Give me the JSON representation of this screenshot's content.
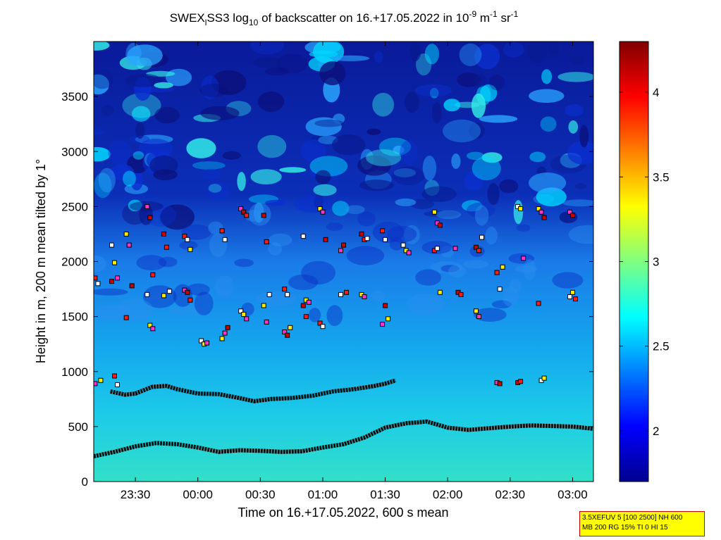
{
  "chart_data": {
    "type": "heatmap",
    "title_prefix": "SWEX",
    "title_sub1": "l",
    "title_mid": "SS3 log",
    "title_sub2": "10",
    "title_rest": " of backscatter on 16.+17.05.2022 in 10",
    "title_sup1": "-9",
    "title_unit1": " m",
    "title_sup2": "-1",
    "title_unit2": " sr",
    "title_sup3": "-1",
    "xlabel": "Time on 16.+17.05.2022, 600 s mean",
    "ylabel": "Height in m, 200 m mean tilted by 1°",
    "x_ticks": [
      "23:30",
      "00:00",
      "00:30",
      "01:00",
      "01:30",
      "02:00",
      "02:30",
      "03:00"
    ],
    "y_ticks": [
      "0",
      "500",
      "1000",
      "1500",
      "2000",
      "2500",
      "3000",
      "3500"
    ],
    "colorbar_ticks": [
      "2",
      "2.5",
      "3",
      "3.5",
      "4"
    ],
    "xlim": [
      "23:10",
      "03:10"
    ],
    "ylim": [
      0,
      4000
    ],
    "clim": [
      1.7,
      4.3
    ],
    "colormap": "jet",
    "layer_lines": [
      {
        "name": "",
        "points": [
          [
            "23:10",
            230
          ],
          [
            "23:20",
            270
          ],
          [
            "23:30",
            320
          ],
          [
            "23:40",
            350
          ],
          [
            "23:50",
            340
          ],
          [
            "00:00",
            310
          ],
          [
            "00:10",
            270
          ],
          [
            "00:20",
            285
          ],
          [
            "00:30",
            280
          ],
          [
            "00:40",
            270
          ],
          [
            "00:50",
            275
          ],
          [
            "01:00",
            310
          ],
          [
            "01:10",
            340
          ],
          [
            "01:20",
            400
          ],
          [
            "01:30",
            490
          ],
          [
            "01:40",
            530
          ],
          [
            "01:50",
            545
          ],
          [
            "02:00",
            490
          ],
          [
            "02:10",
            470
          ],
          [
            "02:20",
            485
          ],
          [
            "02:30",
            500
          ],
          [
            "02:40",
            510
          ],
          [
            "02:50",
            505
          ],
          [
            "03:00",
            500
          ],
          [
            "03:10",
            480
          ]
        ]
      },
      {
        "name": "",
        "points": [
          [
            "23:18",
            820
          ],
          [
            "23:25",
            790
          ],
          [
            "23:30",
            800
          ],
          [
            "23:38",
            860
          ],
          [
            "23:45",
            870
          ],
          [
            "23:50",
            840
          ],
          [
            "00:00",
            800
          ],
          [
            "00:10",
            795
          ],
          [
            "00:20",
            760
          ],
          [
            "00:27",
            730
          ],
          [
            "00:35",
            750
          ],
          [
            "00:45",
            760
          ],
          [
            "00:55",
            780
          ],
          [
            "01:05",
            820
          ],
          [
            "01:15",
            840
          ],
          [
            "01:25",
            870
          ],
          [
            "01:30",
            890
          ],
          [
            "01:35",
            920
          ]
        ]
      }
    ],
    "marker_clusters": [
      {
        "x": "23:12",
        "heights": [
          1850,
          1800,
          920,
          890
        ]
      },
      {
        "x": "23:20",
        "heights": [
          2150,
          1990,
          1850,
          1820,
          960,
          880
        ]
      },
      {
        "x": "23:27",
        "heights": [
          2250,
          2150,
          1780,
          1490
        ]
      },
      {
        "x": "23:37",
        "heights": [
          2500,
          2400,
          1880,
          1700,
          1420,
          1390
        ]
      },
      {
        "x": "23:45",
        "heights": [
          2250,
          2130,
          1730,
          1690
        ]
      },
      {
        "x": "23:55",
        "heights": [
          2230,
          2200,
          2110,
          1740,
          1720,
          1650
        ]
      },
      {
        "x": "00:03",
        "heights": [
          1280,
          1250,
          1260
        ]
      },
      {
        "x": "00:13",
        "heights": [
          1300,
          1350,
          1400,
          2280,
          2200
        ]
      },
      {
        "x": "00:22",
        "heights": [
          2480,
          2450,
          2420,
          1550,
          1520,
          1480
        ]
      },
      {
        "x": "00:33",
        "heights": [
          2420,
          2180,
          1700,
          1600,
          1450
        ]
      },
      {
        "x": "00:43",
        "heights": [
          1750,
          1700,
          1400,
          1360,
          1330
        ]
      },
      {
        "x": "00:52",
        "heights": [
          2230,
          1650,
          1630,
          1600,
          1500
        ]
      },
      {
        "x": "01:00",
        "heights": [
          2480,
          2450,
          2200,
          1440,
          1410
        ]
      },
      {
        "x": "01:10",
        "heights": [
          2100,
          2150,
          1720,
          1700
        ]
      },
      {
        "x": "01:20",
        "heights": [
          2250,
          2200,
          2210,
          1700,
          1680
        ]
      },
      {
        "x": "01:30",
        "heights": [
          2280,
          2200,
          1480,
          1430,
          1600
        ]
      },
      {
        "x": "01:40",
        "heights": [
          2150,
          2100,
          2080
        ]
      },
      {
        "x": "01:55",
        "heights": [
          2450,
          2350,
          2330,
          2100,
          2120,
          1720
        ]
      },
      {
        "x": "02:05",
        "heights": [
          2120,
          1720,
          1700
        ]
      },
      {
        "x": "02:15",
        "heights": [
          2130,
          2100,
          2220,
          1550,
          1500
        ]
      },
      {
        "x": "02:25",
        "heights": [
          1900,
          1750,
          1950,
          900,
          890
        ]
      },
      {
        "x": "02:35",
        "heights": [
          2500,
          2480,
          2030,
          900,
          910
        ]
      },
      {
        "x": "02:45",
        "heights": [
          2480,
          2450,
          2400,
          1620,
          920,
          940
        ]
      },
      {
        "x": "03:00",
        "heights": [
          2450,
          2420,
          1660,
          1680,
          1720
        ]
      }
    ]
  },
  "info_box": {
    "line1": "3.5XEFUV 5 [100 2500] NH 600",
    "line2": "MB 200 RG 15% TI 0 HI 15"
  }
}
